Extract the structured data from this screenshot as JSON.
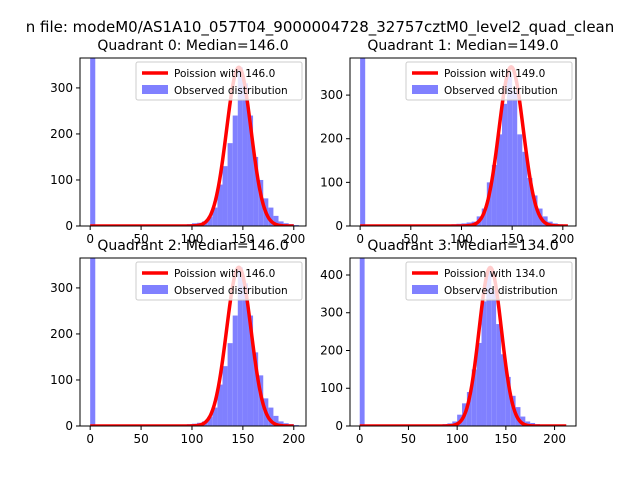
{
  "figure": {
    "suptitle": "n file: modeM0/AS1A10_057T04_9000004728_32757cztM0_level2_quad_clean"
  },
  "colors": {
    "hist_fill": "#8080ff",
    "fit_line": "#ff0000",
    "axis": "#000000",
    "background": "#ffffff"
  },
  "chart_data": [
    {
      "type": "bar",
      "title": "Quadrant 0: Median=146.0",
      "xlim": [
        -10,
        212
      ],
      "ylim": [
        0,
        365
      ],
      "xticks": [
        0,
        50,
        100,
        150,
        200
      ],
      "yticks": [
        0,
        100,
        200,
        300
      ],
      "bin_width": 5,
      "bins": [
        [
          0,
          365
        ],
        [
          80,
          2
        ],
        [
          90,
          3
        ],
        [
          95,
          4
        ],
        [
          100,
          6
        ],
        [
          105,
          7
        ],
        [
          110,
          10
        ],
        [
          115,
          20
        ],
        [
          120,
          40
        ],
        [
          125,
          90
        ],
        [
          130,
          130
        ],
        [
          135,
          180
        ],
        [
          140,
          240
        ],
        [
          145,
          345
        ],
        [
          150,
          310
        ],
        [
          155,
          240
        ],
        [
          160,
          150
        ],
        [
          165,
          100
        ],
        [
          170,
          60
        ],
        [
          175,
          40
        ],
        [
          180,
          22
        ],
        [
          185,
          10
        ],
        [
          190,
          6
        ],
        [
          195,
          4
        ],
        [
          200,
          2
        ]
      ],
      "fit_mean": 146.0,
      "fit_peak": 345,
      "fit_sigma": 12,
      "fit_range": [
        0,
        200
      ],
      "legend": [
        "Poission with 146.0",
        "Observed distribution"
      ]
    },
    {
      "type": "bar",
      "title": "Quadrant 1: Median=149.0",
      "xlim": [
        -10,
        213
      ],
      "ylim": [
        0,
        385
      ],
      "xticks": [
        0,
        50,
        100,
        150,
        200
      ],
      "yticks": [
        0,
        100,
        200,
        300
      ],
      "bin_width": 5,
      "bins": [
        [
          0,
          385
        ],
        [
          80,
          2
        ],
        [
          85,
          3
        ],
        [
          90,
          4
        ],
        [
          95,
          5
        ],
        [
          100,
          6
        ],
        [
          105,
          8
        ],
        [
          110,
          10
        ],
        [
          115,
          22
        ],
        [
          120,
          40
        ],
        [
          125,
          100
        ],
        [
          130,
          140
        ],
        [
          135,
          210
        ],
        [
          140,
          280
        ],
        [
          145,
          350
        ],
        [
          150,
          310
        ],
        [
          155,
          210
        ],
        [
          160,
          170
        ],
        [
          165,
          110
        ],
        [
          170,
          70
        ],
        [
          175,
          40
        ],
        [
          180,
          22
        ],
        [
          185,
          10
        ],
        [
          190,
          6
        ],
        [
          195,
          4
        ],
        [
          200,
          2
        ]
      ],
      "fit_mean": 149.0,
      "fit_peak": 365,
      "fit_sigma": 12,
      "fit_range": [
        0,
        205
      ],
      "legend": [
        "Poission with 149.0",
        "Observed distribution"
      ]
    },
    {
      "type": "bar",
      "title": "Quadrant 2: Median=146.0",
      "xlim": [
        -10,
        212
      ],
      "ylim": [
        0,
        365
      ],
      "xticks": [
        0,
        50,
        100,
        150,
        200
      ],
      "yticks": [
        0,
        100,
        200,
        300
      ],
      "bin_width": 5,
      "bins": [
        [
          0,
          365
        ],
        [
          80,
          2
        ],
        [
          90,
          3
        ],
        [
          95,
          4
        ],
        [
          100,
          5
        ],
        [
          105,
          7
        ],
        [
          110,
          10
        ],
        [
          115,
          20
        ],
        [
          120,
          40
        ],
        [
          125,
          90
        ],
        [
          130,
          130
        ],
        [
          135,
          180
        ],
        [
          140,
          240
        ],
        [
          145,
          345
        ],
        [
          150,
          310
        ],
        [
          155,
          240
        ],
        [
          160,
          160
        ],
        [
          165,
          110
        ],
        [
          170,
          60
        ],
        [
          175,
          40
        ],
        [
          180,
          22
        ],
        [
          185,
          10
        ],
        [
          190,
          6
        ],
        [
          195,
          4
        ],
        [
          200,
          2
        ]
      ],
      "fit_mean": 146.0,
      "fit_peak": 345,
      "fit_sigma": 12,
      "fit_range": [
        0,
        200
      ],
      "legend": [
        "Poission with 146.0",
        "Observed distribution"
      ]
    },
    {
      "type": "bar",
      "title": "Quadrant 3: Median=134.0",
      "xlim": [
        -10,
        222
      ],
      "ylim": [
        0,
        445
      ],
      "xticks": [
        0,
        50,
        100,
        150,
        200
      ],
      "yticks": [
        0,
        100,
        200,
        300,
        400
      ],
      "bin_width": 5,
      "bins": [
        [
          0,
          445
        ],
        [
          80,
          3
        ],
        [
          85,
          5
        ],
        [
          90,
          7
        ],
        [
          95,
          12
        ],
        [
          100,
          30
        ],
        [
          105,
          60
        ],
        [
          110,
          90
        ],
        [
          115,
          150
        ],
        [
          120,
          220
        ],
        [
          125,
          330
        ],
        [
          130,
          410
        ],
        [
          135,
          360
        ],
        [
          140,
          270
        ],
        [
          145,
          190
        ],
        [
          150,
          130
        ],
        [
          155,
          80
        ],
        [
          160,
          50
        ],
        [
          165,
          25
        ],
        [
          170,
          12
        ],
        [
          175,
          8
        ],
        [
          180,
          5
        ],
        [
          185,
          3
        ],
        [
          190,
          2
        ]
      ],
      "fit_mean": 134.0,
      "fit_peak": 420,
      "fit_sigma": 11.5,
      "fit_range": [
        0,
        212
      ],
      "legend": [
        "Poission with 134.0",
        "Observed distribution"
      ]
    }
  ]
}
